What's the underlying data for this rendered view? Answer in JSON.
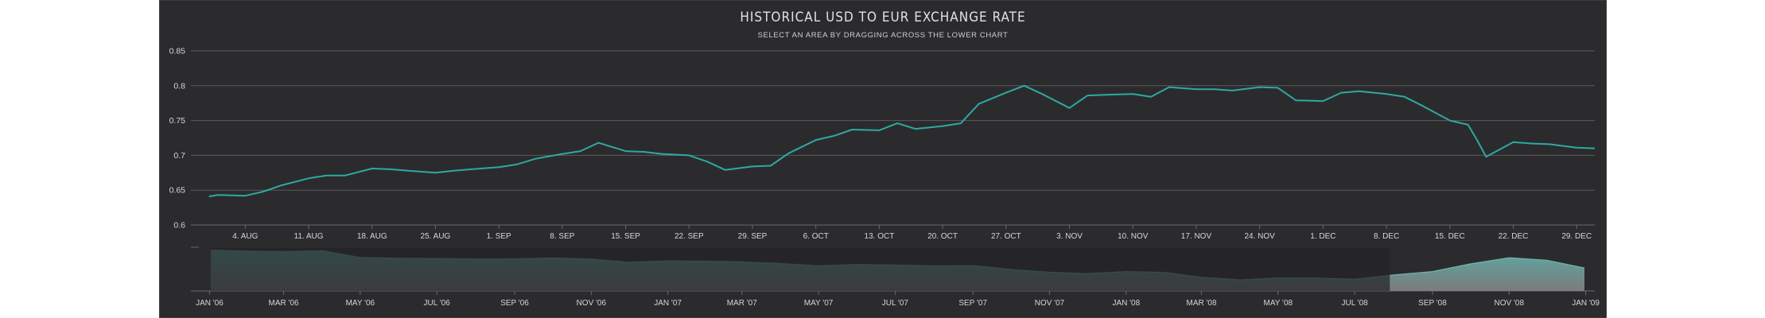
{
  "colors": {
    "background": "#2b2b2d",
    "series": "#2ea9a1",
    "navigator_fill": "#5fa7a1",
    "selection_mask": "#232325"
  },
  "chart_data": [
    {
      "type": "line",
      "title": "HISTORICAL USD TO EUR EXCHANGE RATE",
      "subtitle": "SELECT AN AREA BY DRAGGING ACROSS THE LOWER CHART",
      "grid": true,
      "legend": "none",
      "ylim": [
        0.6,
        0.85
      ],
      "yticks": [
        "0.6",
        "0.65",
        "0.7",
        "0.75",
        "0.8",
        "0.85"
      ],
      "xlim": [
        "2008-07-29",
        "2008-12-31"
      ],
      "xticks": [
        {
          "date": "2008-08-04",
          "label": "4. AUG"
        },
        {
          "date": "2008-08-11",
          "label": "11. AUG"
        },
        {
          "date": "2008-08-18",
          "label": "18. AUG"
        },
        {
          "date": "2008-08-25",
          "label": "25. AUG"
        },
        {
          "date": "2008-09-01",
          "label": "1. SEP"
        },
        {
          "date": "2008-09-08",
          "label": "8. SEP"
        },
        {
          "date": "2008-09-15",
          "label": "15. SEP"
        },
        {
          "date": "2008-09-22",
          "label": "22. SEP"
        },
        {
          "date": "2008-09-29",
          "label": "29. SEP"
        },
        {
          "date": "2008-10-06",
          "label": "6. OCT"
        },
        {
          "date": "2008-10-13",
          "label": "13. OCT"
        },
        {
          "date": "2008-10-20",
          "label": "20. OCT"
        },
        {
          "date": "2008-10-27",
          "label": "27. OCT"
        },
        {
          "date": "2008-11-03",
          "label": "3. NOV"
        },
        {
          "date": "2008-11-10",
          "label": "10. NOV"
        },
        {
          "date": "2008-11-17",
          "label": "17. NOV"
        },
        {
          "date": "2008-11-24",
          "label": "24. NOV"
        },
        {
          "date": "2008-12-01",
          "label": "1. DEC"
        },
        {
          "date": "2008-12-08",
          "label": "8. DEC"
        },
        {
          "date": "2008-12-15",
          "label": "15. DEC"
        },
        {
          "date": "2008-12-22",
          "label": "22. DEC"
        },
        {
          "date": "2008-12-29",
          "label": "29. DEC"
        }
      ],
      "series": [
        {
          "x": [
            "2008-07-31",
            "2008-08-01",
            "2008-08-04",
            "2008-08-06",
            "2008-08-08",
            "2008-08-11",
            "2008-08-13",
            "2008-08-15",
            "2008-08-18",
            "2008-08-20",
            "2008-08-22",
            "2008-08-25",
            "2008-08-27",
            "2008-08-29",
            "2008-09-01",
            "2008-09-03",
            "2008-09-05",
            "2008-09-08",
            "2008-09-10",
            "2008-09-12",
            "2008-09-15",
            "2008-09-17",
            "2008-09-19",
            "2008-09-22",
            "2008-09-24",
            "2008-09-26",
            "2008-09-29",
            "2008-10-01",
            "2008-10-03",
            "2008-10-06",
            "2008-10-08",
            "2008-10-10",
            "2008-10-13",
            "2008-10-15",
            "2008-10-17",
            "2008-10-20",
            "2008-10-22",
            "2008-10-24",
            "2008-10-27",
            "2008-10-29",
            "2008-10-31",
            "2008-11-03",
            "2008-11-05",
            "2008-11-07",
            "2008-11-10",
            "2008-11-12",
            "2008-11-14",
            "2008-11-17",
            "2008-11-19",
            "2008-11-21",
            "2008-11-24",
            "2008-11-26",
            "2008-11-28",
            "2008-12-01",
            "2008-12-03",
            "2008-12-05",
            "2008-12-08",
            "2008-12-10",
            "2008-12-12",
            "2008-12-15",
            "2008-12-17",
            "2008-12-18",
            "2008-12-19",
            "2008-12-22",
            "2008-12-24",
            "2008-12-26",
            "2008-12-29",
            "2008-12-31"
          ],
          "values": [
            0.641,
            0.643,
            0.642,
            0.648,
            0.657,
            0.667,
            0.671,
            0.671,
            0.681,
            0.68,
            0.678,
            0.675,
            0.678,
            0.68,
            0.683,
            0.687,
            0.695,
            0.702,
            0.706,
            0.718,
            0.706,
            0.705,
            0.702,
            0.7,
            0.691,
            0.679,
            0.684,
            0.685,
            0.703,
            0.722,
            0.728,
            0.737,
            0.736,
            0.746,
            0.738,
            0.742,
            0.746,
            0.774,
            0.79,
            0.8,
            0.788,
            0.768,
            0.786,
            0.787,
            0.788,
            0.784,
            0.798,
            0.795,
            0.795,
            0.793,
            0.798,
            0.797,
            0.779,
            0.778,
            0.79,
            0.792,
            0.788,
            0.784,
            0.771,
            0.75,
            0.744,
            0.722,
            0.698,
            0.719,
            0.717,
            0.716,
            0.711,
            0.71
          ]
        }
      ]
    },
    {
      "type": "area",
      "grid": false,
      "legend": "none",
      "xlim": [
        "2006-01-02",
        "2008-12-31"
      ],
      "xticks": [
        {
          "date": "2006-01-01",
          "label": "JAN '06"
        },
        {
          "date": "2006-03-01",
          "label": "MAR '06"
        },
        {
          "date": "2006-05-01",
          "label": "MAY '06"
        },
        {
          "date": "2006-07-01",
          "label": "JUL '06"
        },
        {
          "date": "2006-09-01",
          "label": "SEP '06"
        },
        {
          "date": "2006-11-01",
          "label": "NOV '06"
        },
        {
          "date": "2007-01-01",
          "label": "JAN '07"
        },
        {
          "date": "2007-03-01",
          "label": "MAR '07"
        },
        {
          "date": "2007-05-01",
          "label": "MAY '07"
        },
        {
          "date": "2007-07-01",
          "label": "JUL '07"
        },
        {
          "date": "2007-09-01",
          "label": "SEP '07"
        },
        {
          "date": "2007-11-01",
          "label": "NOV '07"
        },
        {
          "date": "2008-01-01",
          "label": "JAN '08"
        },
        {
          "date": "2008-03-01",
          "label": "MAR '08"
        },
        {
          "date": "2008-05-01",
          "label": "MAY '08"
        },
        {
          "date": "2008-07-01",
          "label": "JUL '08"
        },
        {
          "date": "2008-09-01",
          "label": "SEP '08"
        },
        {
          "date": "2008-11-01",
          "label": "NOV '08"
        },
        {
          "date": "2009-01-01",
          "label": "JAN '09"
        }
      ],
      "selection": [
        "2008-07-29",
        "2008-12-31"
      ],
      "series": [
        {
          "x": [
            "2006-01-02",
            "2006-02-01",
            "2006-03-01",
            "2006-04-01",
            "2006-05-01",
            "2006-06-01",
            "2006-07-01",
            "2006-08-01",
            "2006-09-01",
            "2006-10-01",
            "2006-11-01",
            "2006-12-01",
            "2007-01-01",
            "2007-02-01",
            "2007-03-01",
            "2007-04-01",
            "2007-05-01",
            "2007-06-01",
            "2007-07-01",
            "2007-08-01",
            "2007-09-01",
            "2007-10-01",
            "2007-11-01",
            "2007-12-01",
            "2008-01-01",
            "2008-02-01",
            "2008-03-01",
            "2008-04-01",
            "2008-05-01",
            "2008-06-01",
            "2008-07-01",
            "2008-08-01",
            "2008-09-01",
            "2008-10-01",
            "2008-11-01",
            "2008-12-01",
            "2008-12-31"
          ],
          "values": [
            0.845,
            0.837,
            0.834,
            0.84,
            0.792,
            0.786,
            0.785,
            0.78,
            0.782,
            0.788,
            0.78,
            0.757,
            0.767,
            0.765,
            0.76,
            0.748,
            0.732,
            0.741,
            0.738,
            0.731,
            0.733,
            0.705,
            0.685,
            0.676,
            0.69,
            0.684,
            0.648,
            0.63,
            0.644,
            0.643,
            0.635,
            0.666,
            0.69,
            0.745,
            0.79,
            0.772,
            0.716
          ]
        }
      ]
    }
  ]
}
